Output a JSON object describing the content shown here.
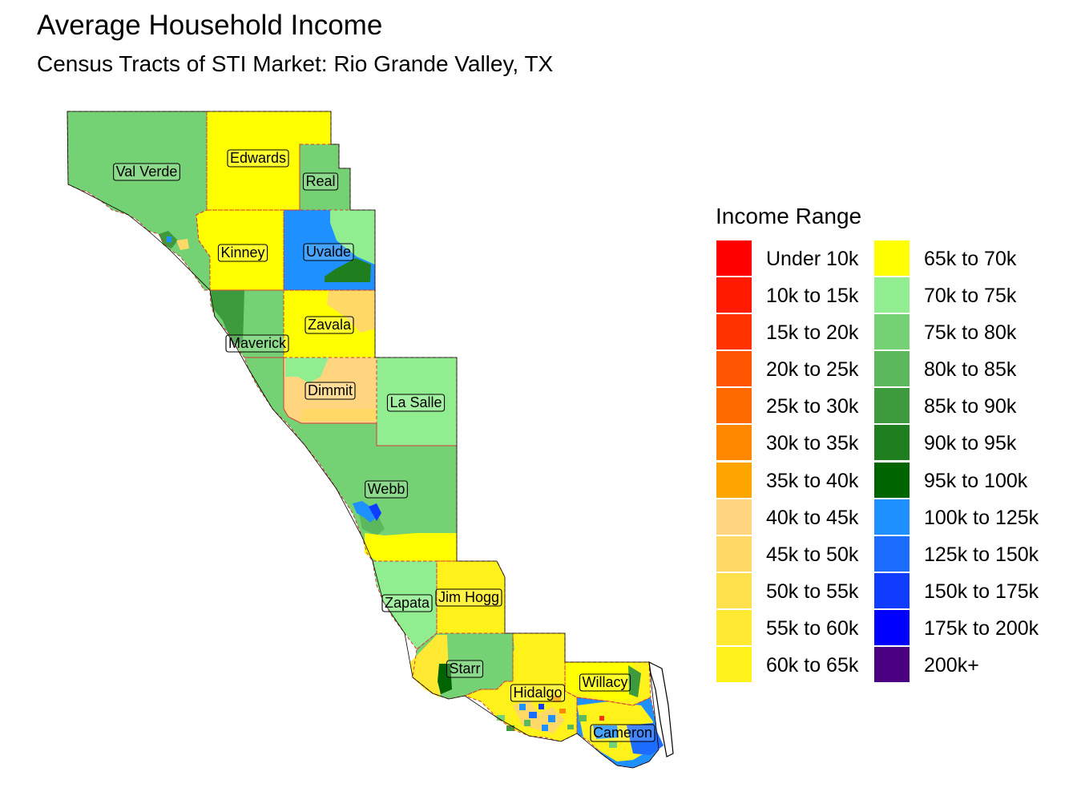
{
  "title": "Average Household Income",
  "subtitle": "Census Tracts of STI Market: Rio Grande Valley, TX",
  "legend": {
    "title": "Income Range",
    "items": [
      {
        "label": "Under 10k",
        "color": "#FF0000"
      },
      {
        "label": "10k to 15k",
        "color": "#FF1A00"
      },
      {
        "label": "15k to 20k",
        "color": "#FF3300"
      },
      {
        "label": "20k to 25k",
        "color": "#FF5500"
      },
      {
        "label": "25k to 30k",
        "color": "#FF6A00"
      },
      {
        "label": "30k to 35k",
        "color": "#FF8800"
      },
      {
        "label": "35k to 40k",
        "color": "#FFA500"
      },
      {
        "label": "40k to 45k",
        "color": "#FFD580"
      },
      {
        "label": "45k to 50k",
        "color": "#FFD966"
      },
      {
        "label": "50k to 55k",
        "color": "#FFE14D"
      },
      {
        "label": "55k to 60k",
        "color": "#FFE933"
      },
      {
        "label": "60k to 65k",
        "color": "#FFF11A"
      },
      {
        "label": "65k to 70k",
        "color": "#FFFF00"
      },
      {
        "label": "70k to 75k",
        "color": "#90EE90"
      },
      {
        "label": "75k to 80k",
        "color": "#74D274"
      },
      {
        "label": "80k to 85k",
        "color": "#5CB85C"
      },
      {
        "label": "85k to 90k",
        "color": "#3D9B3D"
      },
      {
        "label": "90k to 95k",
        "color": "#1F7F1F"
      },
      {
        "label": "95k to 100k",
        "color": "#006400"
      },
      {
        "label": "100k to 125k",
        "color": "#1E90FF"
      },
      {
        "label": "125k to 150k",
        "color": "#1C6CFF"
      },
      {
        "label": "150k to 175k",
        "color": "#0F3CFF"
      },
      {
        "label": "175k to 200k",
        "color": "#0000FF"
      },
      {
        "label": "200k+",
        "color": "#4B0082"
      }
    ]
  },
  "counties": [
    {
      "name": "Val Verde",
      "fill": "#74D274"
    },
    {
      "name": "Edwards",
      "fill": "#FFFF00"
    },
    {
      "name": "Real",
      "fill": "#74D274"
    },
    {
      "name": "Kinney",
      "fill": "#FFFF00"
    },
    {
      "name": "Uvalde",
      "fill": "#1E90FF"
    },
    {
      "name": "Maverick",
      "fill": "#74D274"
    },
    {
      "name": "Zavala",
      "fill": "#FFFF00"
    },
    {
      "name": "Dimmit",
      "fill": "#FFD580"
    },
    {
      "name": "La Salle",
      "fill": "#90EE90"
    },
    {
      "name": "Webb",
      "fill": "#74D274"
    },
    {
      "name": "Zapata",
      "fill": "#90EE90"
    },
    {
      "name": "Jim Hogg",
      "fill": "#FFF11A"
    },
    {
      "name": "Starr",
      "fill": "#74D274"
    },
    {
      "name": "Hidalgo",
      "fill": "#FFF11A"
    },
    {
      "name": "Willacy",
      "fill": "#FFF11A"
    },
    {
      "name": "Cameron",
      "fill": "#1E90FF"
    }
  ]
}
